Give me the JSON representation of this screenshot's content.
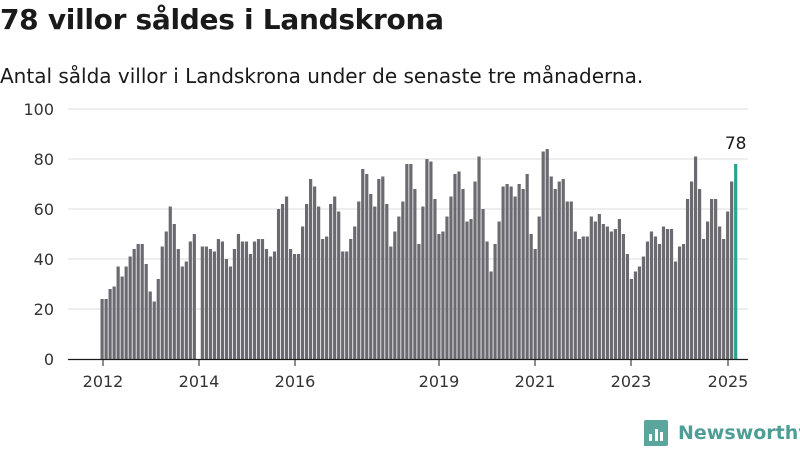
{
  "header": {
    "title": "78 villor såldes i Landskrona",
    "subtitle": "Antal sålda villor i Landskrona under de senaste tre månaderna."
  },
  "brand": {
    "name": "Newsworthy",
    "icon": "newsworthy-logo-icon",
    "color": "#5aa59c"
  },
  "chart_data": {
    "type": "bar",
    "title": "78 villor såldes i Landskrona",
    "subtitle": "Antal sålda villor i Landskrona under de senaste tre månaderna.",
    "xlabel": "",
    "ylabel": "",
    "ylim": [
      0,
      100
    ],
    "yticks": [
      0,
      20,
      40,
      60,
      80,
      100
    ],
    "xticks": [
      "2012",
      "2014",
      "2016",
      "2019",
      "2021",
      "2023",
      "2025"
    ],
    "grid": true,
    "legend": "none",
    "bar_color": "#6b6a70",
    "highlight_color": "#27a393",
    "highlight_label": "78",
    "series": [
      {
        "values": [
          24,
          24,
          28,
          29,
          37,
          33,
          37,
          41,
          44,
          46,
          46,
          38,
          27,
          23,
          32,
          45,
          51,
          61,
          54,
          44,
          37,
          39,
          47,
          50,
          null,
          45,
          45,
          44,
          43,
          48,
          47,
          40,
          37,
          44,
          50,
          47,
          47,
          42,
          47,
          48,
          48,
          44,
          41,
          43,
          60,
          62,
          65,
          44,
          42,
          42,
          53,
          62,
          72,
          69,
          61,
          48,
          49,
          62,
          65,
          59,
          43,
          43,
          48,
          53,
          63,
          76,
          74,
          66,
          61,
          72,
          73,
          62,
          45,
          51,
          57,
          63,
          78,
          78,
          68,
          46,
          61,
          80,
          79,
          64,
          50,
          51,
          57,
          65,
          74,
          75,
          68,
          55,
          56,
          71,
          81,
          60,
          47,
          35,
          46,
          55,
          69,
          70,
          69,
          65,
          70,
          68,
          74,
          50,
          44,
          57,
          83,
          84,
          73,
          68,
          71,
          72,
          63,
          63,
          51,
          48,
          49,
          49,
          57,
          55,
          58,
          54,
          53,
          51,
          52,
          56,
          50,
          42,
          32,
          35,
          37,
          41,
          47,
          51,
          49,
          46,
          53,
          52,
          52,
          39,
          45,
          46,
          64,
          71,
          81,
          68,
          48,
          55,
          64,
          64,
          53,
          48,
          59,
          71,
          78
        ]
      }
    ]
  }
}
